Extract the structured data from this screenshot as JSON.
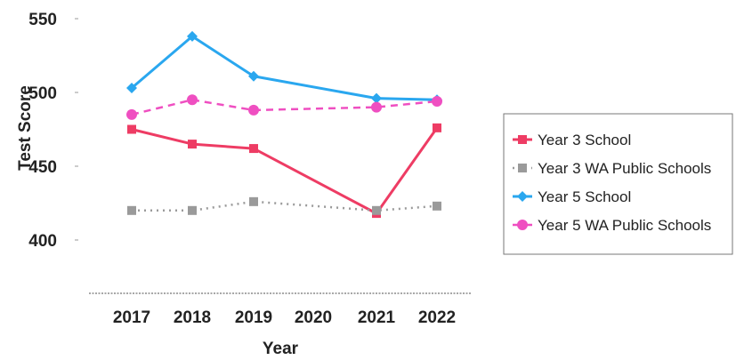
{
  "chart_data": {
    "type": "line",
    "xlabel": "Year",
    "ylabel": "Test Score",
    "x": [
      "2017",
      "2018",
      "2019",
      "2020",
      "2021",
      "2022"
    ],
    "yticks": [
      400,
      450,
      500,
      550
    ],
    "ylim": [
      380,
      560
    ],
    "legend_position": "right",
    "series": [
      {
        "name": "Year 3 School",
        "color": "#ee3c64",
        "style": "solid",
        "marker": "square",
        "values": [
          475,
          465,
          462,
          null,
          418,
          476
        ]
      },
      {
        "name": "Year 3 WA Public Schools",
        "color": "#9a9a9a",
        "style": "dotted",
        "marker": "square",
        "values": [
          420,
          420,
          426,
          null,
          420,
          423
        ]
      },
      {
        "name": "Year 5 School",
        "color": "#2aa7ef",
        "style": "solid",
        "marker": "diamond",
        "values": [
          503,
          538,
          511,
          null,
          496,
          495
        ]
      },
      {
        "name": "Year 5 WA Public Schools",
        "color": "#ef4fc1",
        "style": "dashed",
        "marker": "circle",
        "values": [
          485,
          495,
          488,
          null,
          490,
          494
        ]
      }
    ]
  }
}
